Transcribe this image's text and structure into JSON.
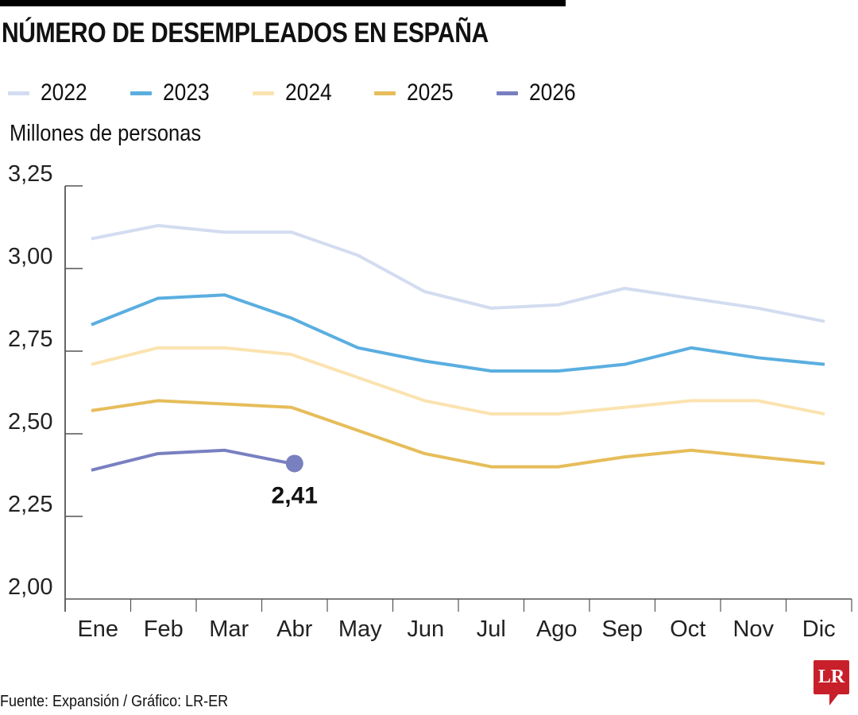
{
  "header": {
    "title": "NÚMERO DE DESEMPLEADOS EN ESPAÑA"
  },
  "footer": {
    "source": "Fuente: Expansión / Gráfico: LR-ER",
    "logo_text": "LR",
    "logo_color": "#c8202b"
  },
  "chart_data": {
    "type": "line",
    "title": "NÚMERO DE DESEMPLEADOS EN ESPAÑA",
    "xlabel": "",
    "ylabel": "Millones de personas",
    "categories": [
      "Ene",
      "Feb",
      "Mar",
      "Abr",
      "May",
      "Jun",
      "Jul",
      "Ago",
      "Sep",
      "Oct",
      "Nov",
      "Dic"
    ],
    "ylim": [
      2.0,
      3.25
    ],
    "yticks": [
      2.0,
      2.25,
      2.5,
      2.75,
      3.0,
      3.25
    ],
    "ytick_labels": [
      "2,00",
      "2,25",
      "2,50",
      "2,75",
      "3,00",
      "3,25"
    ],
    "grid": false,
    "legend_position": "top-left",
    "series": [
      {
        "name": "2022",
        "color": "#d3dcf0",
        "values": [
          3.09,
          3.13,
          3.11,
          3.11,
          3.04,
          2.93,
          2.88,
          2.89,
          2.94,
          2.91,
          2.88,
          2.84
        ]
      },
      {
        "name": "2023",
        "color": "#5aaee0",
        "values": [
          2.83,
          2.91,
          2.92,
          2.85,
          2.76,
          2.72,
          2.69,
          2.69,
          2.71,
          2.76,
          2.73,
          2.71
        ]
      },
      {
        "name": "2024",
        "color": "#fbe3b0",
        "values": [
          2.71,
          2.76,
          2.76,
          2.74,
          2.67,
          2.6,
          2.56,
          2.56,
          2.58,
          2.6,
          2.6,
          2.56
        ]
      },
      {
        "name": "2025",
        "color": "#e6bd5a",
        "values": [
          2.57,
          2.6,
          2.59,
          2.58,
          2.51,
          2.44,
          2.4,
          2.4,
          2.43,
          2.45,
          2.43,
          2.41
        ]
      },
      {
        "name": "2026",
        "color": "#7880c0",
        "values": [
          2.39,
          2.44,
          2.45,
          2.41
        ]
      }
    ],
    "annotations": [
      {
        "series": "2026",
        "category": "Abr",
        "value": 2.41,
        "text": "2,41",
        "marker": "circle"
      }
    ]
  }
}
